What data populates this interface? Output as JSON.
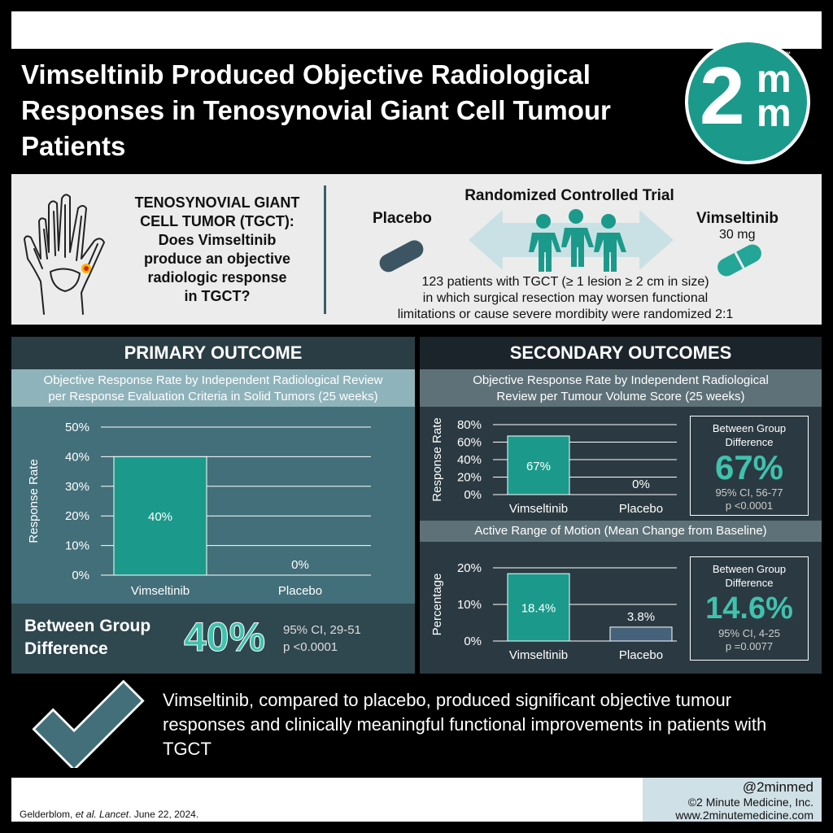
{
  "title": "Vimseltinib Produced Objective Radiological Responses in Tenosynovial Giant Cell Tumour Patients",
  "logo": {
    "main": "2",
    "m1": "m",
    "m2": "m",
    "tm": "™"
  },
  "intro": {
    "question_lines": [
      "TENOSYNOVIAL GIANT",
      "CELL TUMOR (TGCT):",
      "Does Vimseltinib",
      "produce an objective",
      "radiologic response",
      "in TGCT?"
    ],
    "rct_title": "Randomized Controlled Trial",
    "placebo_label": "Placebo",
    "vims_label": "Vimseltinib",
    "vims_dose": "30 mg",
    "description_lines": [
      "123 patients with TGCT (≥ 1 lesion ≥ 2 cm in size)",
      "in which surgical resection may worsen functional",
      "limitations or cause severe mordibity were randomized 2:1"
    ],
    "colors": {
      "pill_dark": "#3d5563",
      "pill_teal": "#23a597",
      "people": "#1b9a8b",
      "arrow": "#c9e1e4"
    }
  },
  "primary": {
    "heading": "PRIMARY OUTCOME",
    "subtitle_lines": [
      "Objective Response Rate by Independent Radiological Review",
      "per Response Evaluation Criteria in Solid Tumors (25 weeks)"
    ],
    "diff_label_lines": [
      "Between Group",
      "Difference"
    ],
    "diff_value": "40%",
    "ci": "95% CI, 29-51",
    "p": "p <0.0001"
  },
  "secondary": {
    "heading": "SECONDARY OUTCOMES",
    "subtitle_lines": [
      "Objective Response Rate by Independent Radiological",
      "Review per Tumour Volume Score (25 weeks)"
    ],
    "subtitle2": "Active Range of Motion (Mean Change from Baseline)",
    "box1": {
      "label_lines": [
        "Between Group",
        "Difference"
      ],
      "value": "67%",
      "ci": "95% CI, 56-77",
      "p": "p <0.0001"
    },
    "box2": {
      "label_lines": [
        "Between Group",
        "Difference"
      ],
      "value": "14.6%",
      "ci": "95% CI, 4-25",
      "p": "p =0.0077"
    }
  },
  "chart_data": [
    {
      "type": "bar",
      "categories": [
        "Vimseltinib",
        "Placebo"
      ],
      "values": [
        40,
        0
      ],
      "value_labels": [
        "40%",
        "0%"
      ],
      "ylabel": "Response Rate",
      "ylim": [
        0,
        50
      ],
      "yticks": [
        "0%",
        "10%",
        "20%",
        "30%",
        "40%",
        "50%"
      ],
      "colors": [
        "#1b9a8b",
        "#436f7a"
      ]
    },
    {
      "type": "bar",
      "categories": [
        "Vimseltinib",
        "Placebo"
      ],
      "values": [
        67,
        0
      ],
      "value_labels": [
        "67%",
        "0%"
      ],
      "ylabel": "Response Rate",
      "ylim": [
        0,
        80
      ],
      "yticks": [
        "0%",
        "20%",
        "40%",
        "60%",
        "80%"
      ],
      "colors": [
        "#1b9a8b",
        "#3d5563"
      ]
    },
    {
      "type": "bar",
      "categories": [
        "Vimseltinib",
        "Placebo"
      ],
      "values": [
        18.4,
        3.8
      ],
      "value_labels": [
        "18.4%",
        "3.8%"
      ],
      "ylabel": "Percentage",
      "ylim": [
        0,
        20
      ],
      "yticks": [
        "0%",
        "10%",
        "20%"
      ],
      "colors": [
        "#1b9a8b",
        "#46617a"
      ]
    }
  ],
  "conclusion": "Vimseltinib, compared to placebo, produced significant objective tumour responses and clinically meaningful functional improvements in patients with TGCT",
  "footer": {
    "citation_author": "Gelderblom, ",
    "citation_etal": "et al. Lancet",
    "citation_date": ". June 22, 2024.",
    "handle": "@2minmed",
    "copyright": "©2 Minute Medicine, Inc.",
    "url": "www.2minutemedicine.com"
  }
}
